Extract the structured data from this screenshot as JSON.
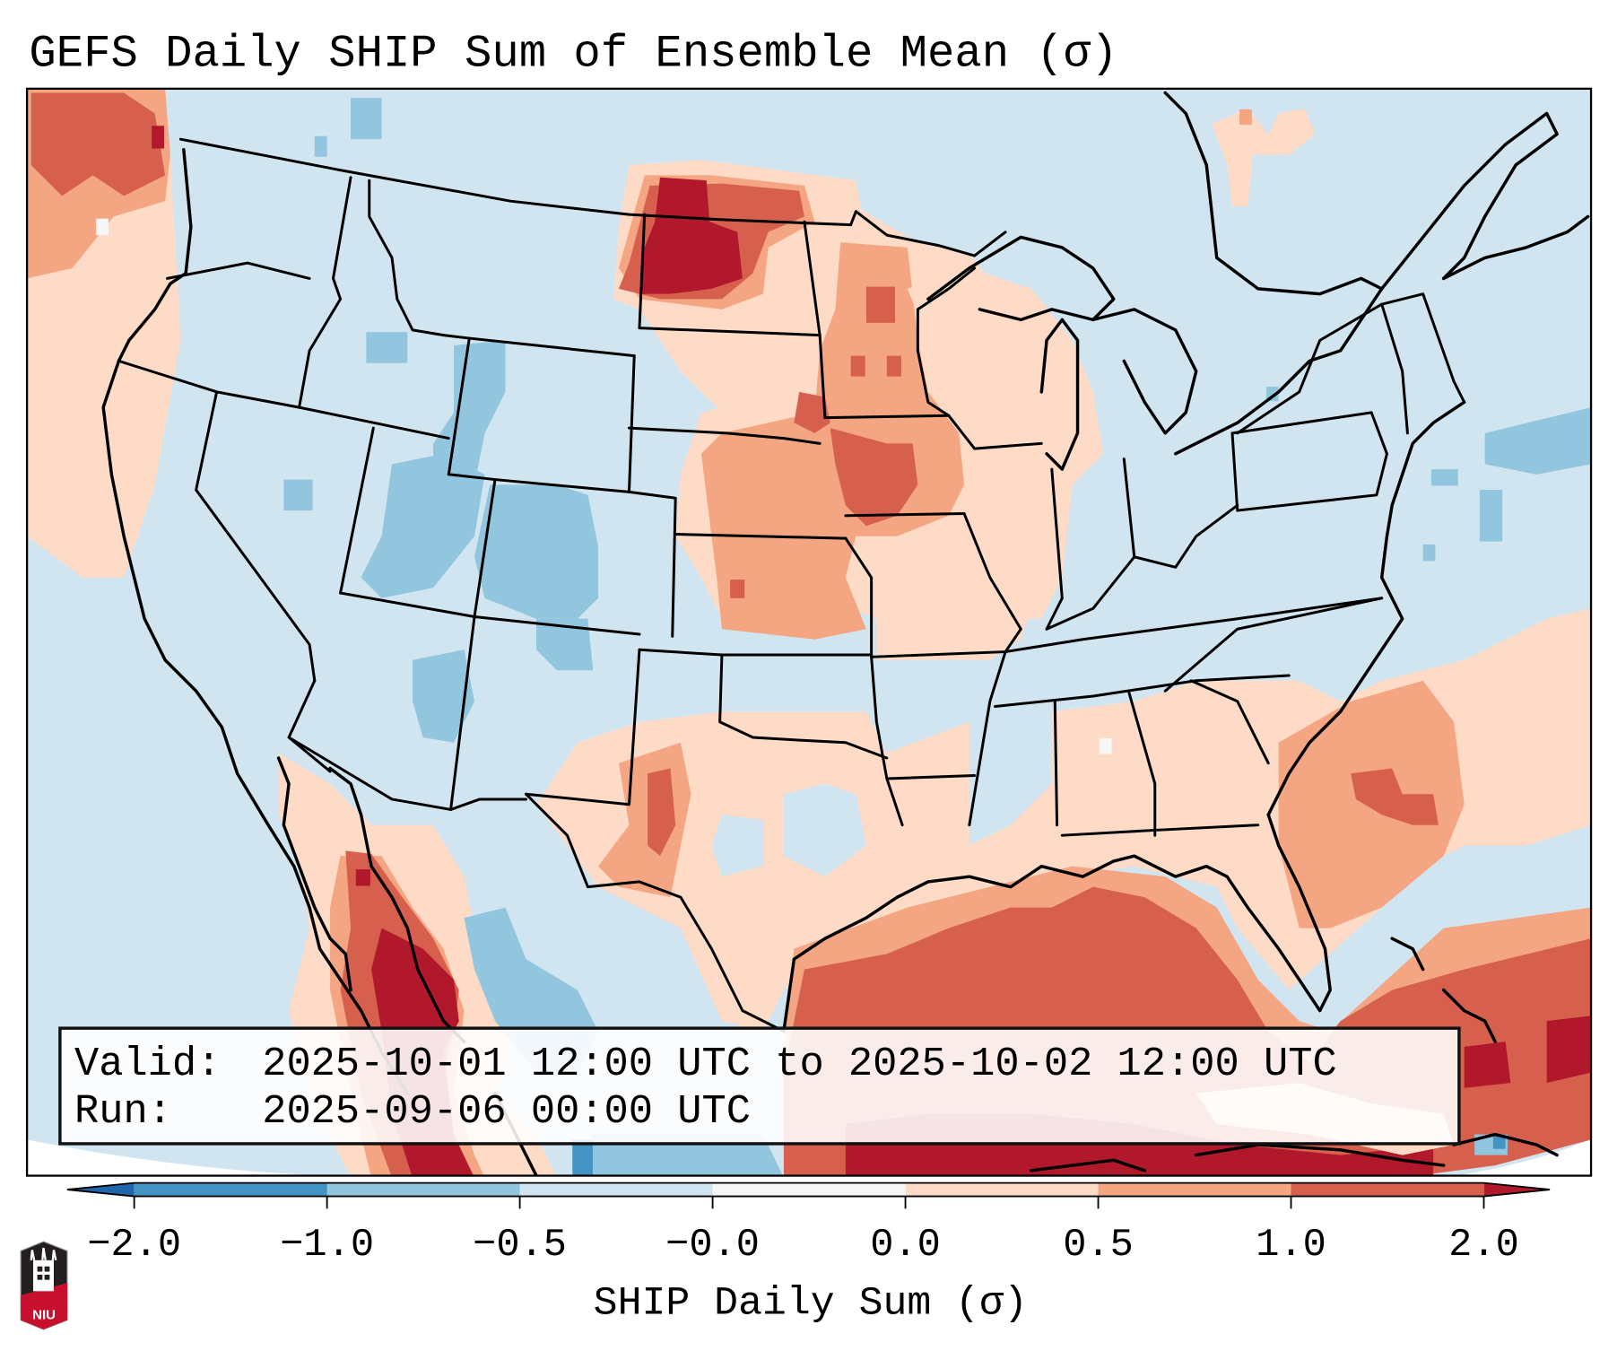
{
  "title": "GEFS Daily SHIP Sum of Ensemble Mean (σ)",
  "info_box": {
    "valid_label": "Valid:",
    "valid_value": "2025-10-01 12:00 UTC to 2025-10-02 12:00 UTC",
    "run_label": "Run:",
    "run_value": "2025-09-06 00:00 UTC"
  },
  "colorbar": {
    "label": "SHIP Daily Sum (σ)",
    "ticks": [
      "−2.0",
      "−1.0",
      "−0.5",
      "−0.0",
      "0.0",
      "0.5",
      "1.0",
      "2.0"
    ],
    "extend": "both",
    "bins": [
      {
        "from": "-2.0",
        "to": "-1.0",
        "color": "#4393c3"
      },
      {
        "from": "-1.0",
        "to": "-0.5",
        "color": "#92c5de"
      },
      {
        "from": "-0.5",
        "to": "-0.0",
        "color": "#d1e5f0"
      },
      {
        "from": "-0.0",
        "to": "0.0",
        "color": "#f7f7f7"
      },
      {
        "from": "0.0",
        "to": "0.5",
        "color": "#fddbc7"
      },
      {
        "from": "0.5",
        "to": "1.0",
        "color": "#f4a582"
      },
      {
        "from": "1.0",
        "to": "2.0",
        "color": "#d6604d"
      }
    ],
    "under_color": "#2166ac",
    "over_color": "#b2182b"
  },
  "logo": {
    "text": "NIU"
  },
  "map": {
    "region": "Contiguous United States",
    "colors": {
      "background": "#d1e5f0",
      "light_blue": "#92c5de",
      "blue": "#4393c3",
      "neutral": "#f7f7f7",
      "light_red": "#fddbc7",
      "red_mid": "#f4a582",
      "red": "#d6604d",
      "dark_red": "#b2182b"
    }
  }
}
